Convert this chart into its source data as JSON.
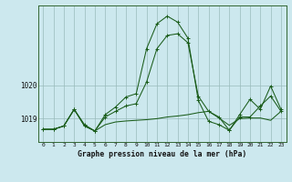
{
  "title": "Graphe pression niveau de la mer (hPa)",
  "bg_color": "#cce8ee",
  "line_color": "#1a5c1a",
  "grid_color": "#99bbbb",
  "x_ticks": [
    0,
    1,
    2,
    3,
    4,
    5,
    6,
    7,
    8,
    9,
    10,
    11,
    12,
    13,
    14,
    15,
    16,
    17,
    18,
    19,
    20,
    21,
    22,
    23
  ],
  "ylim": [
    1018.3,
    1022.4
  ],
  "yticks": [
    1019,
    1020
  ],
  "series_flat": [
    1018.68,
    1018.68,
    1018.78,
    1019.28,
    1018.78,
    1018.63,
    1018.82,
    1018.9,
    1018.93,
    1018.95,
    1018.97,
    1019.0,
    1019.05,
    1019.08,
    1019.12,
    1019.18,
    1019.22,
    1019.02,
    1018.8,
    1019.0,
    1019.02,
    1019.02,
    1018.95,
    1019.22
  ],
  "series_mid": [
    1018.68,
    1018.68,
    1018.78,
    1019.28,
    1018.78,
    1018.63,
    1019.05,
    1019.22,
    1019.38,
    1019.45,
    1020.1,
    1021.1,
    1021.5,
    1021.55,
    1021.28,
    1019.68,
    1019.22,
    1019.05,
    1018.65,
    1019.05,
    1019.05,
    1019.38,
    1019.68,
    1019.22
  ],
  "series_top": [
    1018.68,
    1018.68,
    1018.78,
    1019.28,
    1018.82,
    1018.63,
    1019.12,
    1019.35,
    1019.65,
    1019.75,
    1021.1,
    1021.85,
    1022.08,
    1021.9,
    1021.42,
    1019.55,
    1018.92,
    1018.82,
    1018.65,
    1019.12,
    1019.58,
    1019.28,
    1019.98,
    1019.28
  ]
}
